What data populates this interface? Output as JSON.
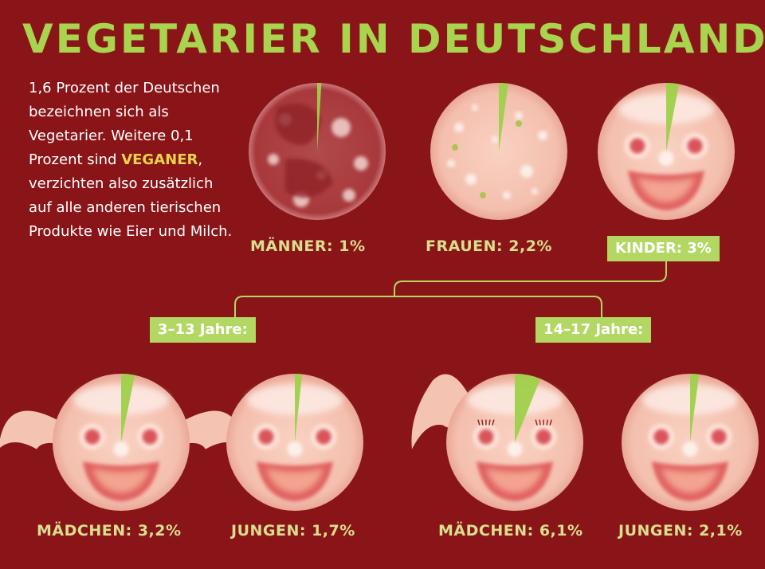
{
  "title": "VEGETARIER IN DEUTSCHLAND",
  "intro": {
    "before": "1,6 Prozent der Deutschen bezeichnen sich als Vegetarier. Weitere 0,1 Prozent sind ",
    "highlight": "VEGANER",
    "after": ", verzichten also zusätzlich auf alle anderen tierischen Produkte wie Eier und Milch."
  },
  "colors": {
    "background": "#8a1518",
    "accent": "#a9d44e",
    "wedge": "#9fd04a",
    "label": "#d8df8e"
  },
  "groups": {
    "age_3_13": "3–13 Jahre:",
    "age_14_17": "14–17 Jahre:"
  },
  "chart_data": {
    "type": "pie",
    "unit": "%",
    "series": [
      {
        "label": "MÄNNER: 1%",
        "value": 1.0,
        "style": "salami"
      },
      {
        "label": "FRAUEN: 2,2%",
        "value": 2.2,
        "style": "mortadella"
      },
      {
        "label": "KINDER: 3%",
        "value": 3.0,
        "style": "face"
      },
      {
        "label": "MÄDCHEN: 3,2%",
        "value": 3.2,
        "style": "girl-pigtails",
        "group": "3–13 Jahre:"
      },
      {
        "label": "JUNGEN: 1,7%",
        "value": 1.7,
        "style": "face",
        "group": "3–13 Jahre:"
      },
      {
        "label": "MÄDCHEN: 6,1%",
        "value": 6.1,
        "style": "girl-ponytail",
        "group": "14–17 Jahre:"
      },
      {
        "label": "JUNGEN: 2,1%",
        "value": 2.1,
        "style": "face",
        "group": "14–17 Jahre:"
      }
    ]
  }
}
